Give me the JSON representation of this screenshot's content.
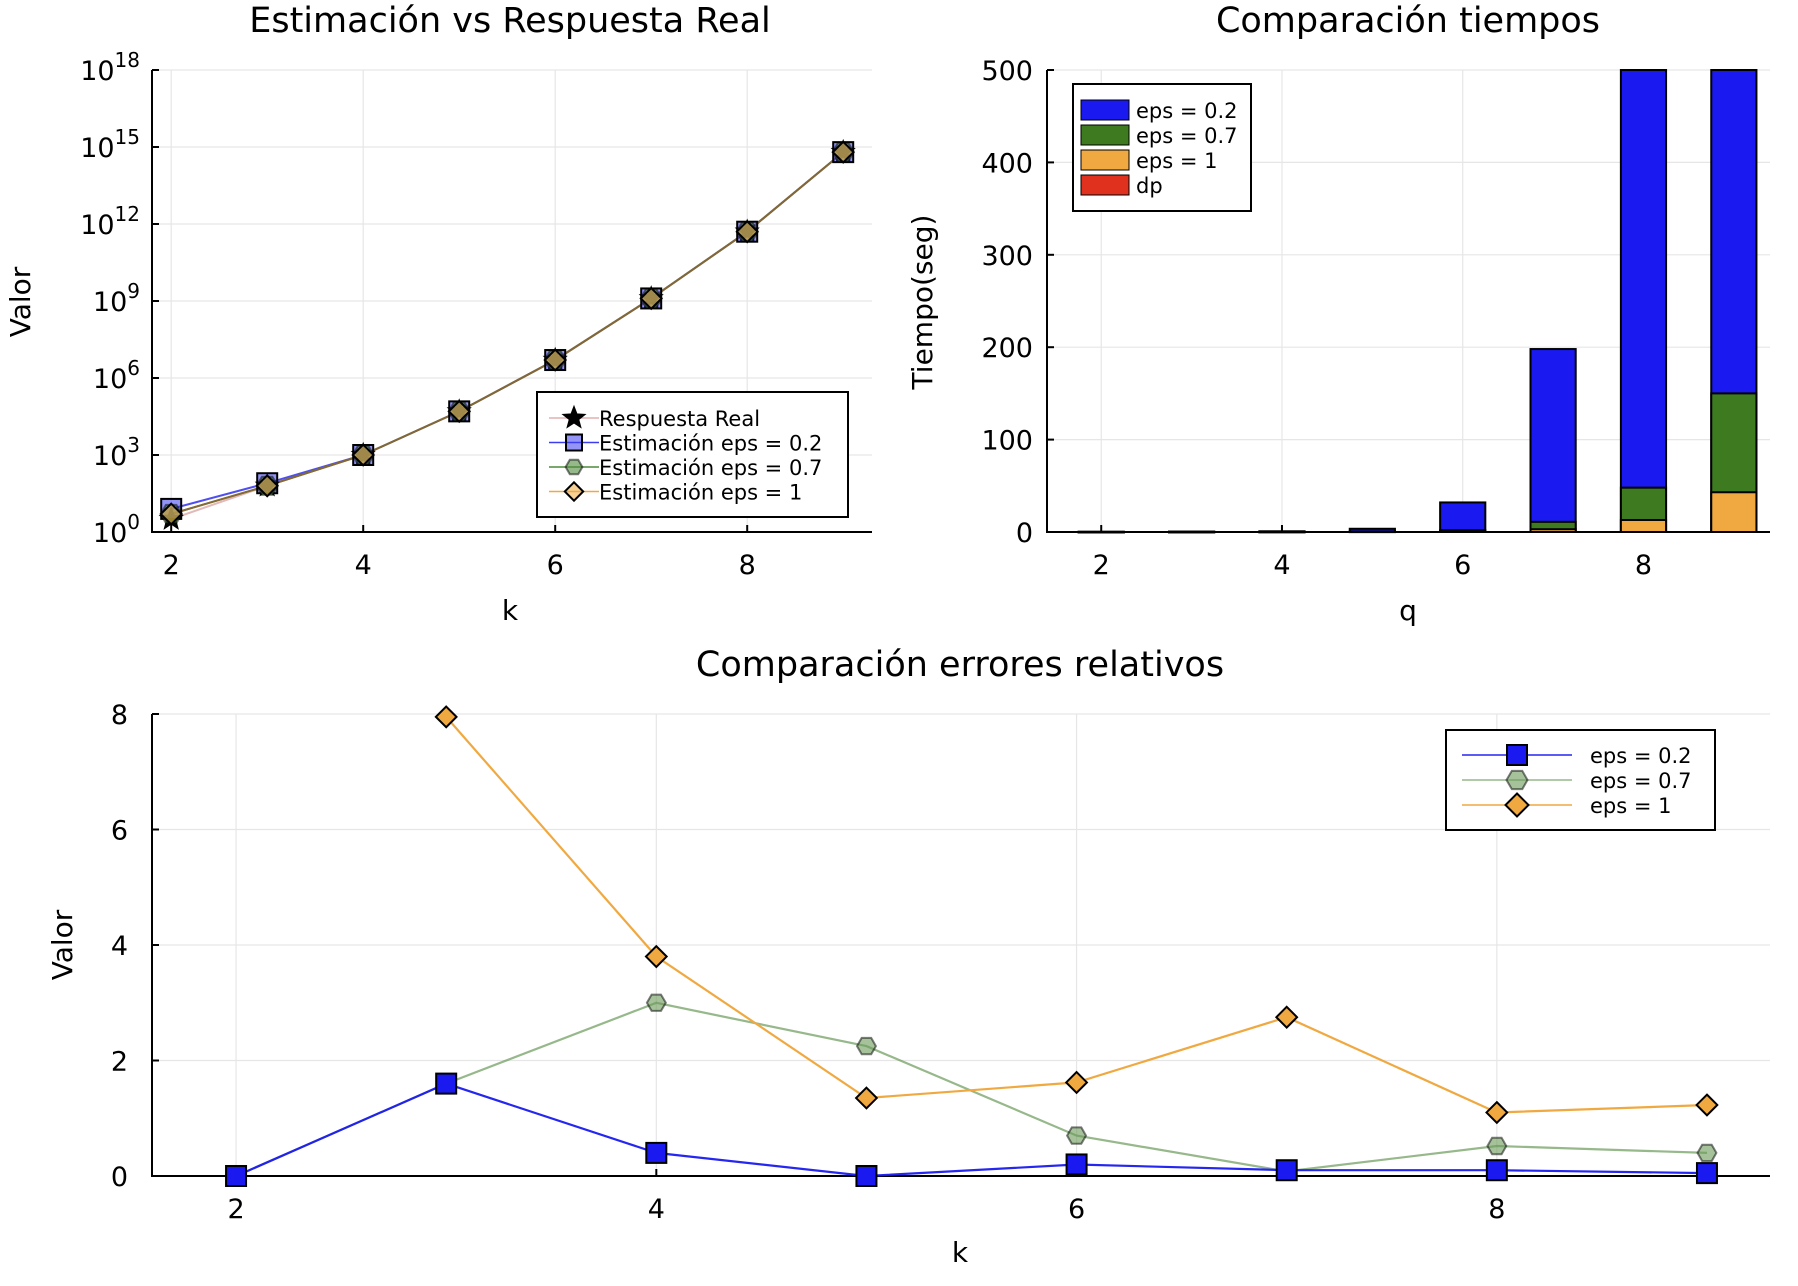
{
  "chart_data": [
    {
      "type": "line",
      "title": "Estimación vs Respuesta Real",
      "xlabel": "k",
      "ylabel": "Valor",
      "yscale": "log10",
      "xlim": [
        1.8,
        9.3
      ],
      "ylim": [
        1,
        1e+18
      ],
      "xticks": [
        2,
        4,
        6,
        8
      ],
      "xtick_labels": [
        "2",
        "4",
        "6",
        "8"
      ],
      "yticks": [
        {
          "exp": 0,
          "base": "10",
          "sup": "0"
        },
        {
          "exp": 3,
          "base": "10",
          "sup": "3"
        },
        {
          "exp": 6,
          "base": "10",
          "sup": "6"
        },
        {
          "exp": 9,
          "base": "10",
          "sup": "9"
        },
        {
          "exp": 12,
          "base": "10",
          "sup": "12"
        },
        {
          "exp": 15,
          "base": "10",
          "sup": "15"
        },
        {
          "exp": 18,
          "base": "10",
          "sup": "18"
        }
      ],
      "grid": true,
      "legend_position": "bottom-right",
      "x": [
        2,
        3,
        4,
        5,
        6,
        7,
        8,
        9
      ],
      "series": [
        {
          "name": "Respuesta Real",
          "marker": "star",
          "color": "#e0b0b0",
          "log10_values": [
            0.5,
            1.8,
            3.0,
            4.7,
            6.7,
            9.1,
            11.7,
            14.8
          ]
        },
        {
          "name": "Estimación eps = 0.2",
          "marker": "square",
          "color": "#3c3cf0",
          "log10_values": [
            0.9,
            1.9,
            3.0,
            4.7,
            6.7,
            9.1,
            11.7,
            14.8
          ]
        },
        {
          "name": "Estimación eps = 0.7",
          "marker": "hexagon",
          "color": "#4e8a3a",
          "log10_values": [
            0.7,
            1.8,
            3.0,
            4.7,
            6.7,
            9.1,
            11.7,
            14.8
          ]
        },
        {
          "name": "Estimación eps = 1",
          "marker": "diamond",
          "color": "#f0a940",
          "log10_values": [
            0.7,
            1.8,
            3.0,
            4.7,
            6.7,
            9.1,
            11.7,
            14.8
          ]
        }
      ]
    },
    {
      "type": "bar",
      "title": "Comparación tiempos",
      "xlabel": "q",
      "ylabel": "Tiempo(seg)",
      "xlim": [
        1.4,
        9.4
      ],
      "ylim": [
        0,
        500
      ],
      "xticks": [
        2,
        4,
        6,
        8
      ],
      "yticks": [
        0,
        100,
        200,
        300,
        400,
        500
      ],
      "grid": true,
      "legend_position": "top-left",
      "categories": [
        2,
        3,
        4,
        5,
        6,
        7,
        8,
        9
      ],
      "series": [
        {
          "name": "eps = 0.2",
          "color": "#1a1af0",
          "values": [
            0.3,
            0.5,
            0.8,
            3.5,
            32,
            198,
            500,
            500
          ]
        },
        {
          "name": "eps = 0.7",
          "color": "#3e7b20",
          "values": [
            0.1,
            0.2,
            0.3,
            0.6,
            2,
            11,
            48,
            150
          ]
        },
        {
          "name": "eps = 1",
          "color": "#f0a940",
          "values": [
            0.1,
            0.1,
            0.2,
            0.4,
            1,
            3,
            13,
            43
          ]
        },
        {
          "name": "dp",
          "color": "#e0311e",
          "values": [
            0,
            0,
            0,
            0,
            0,
            0,
            0,
            0
          ]
        }
      ]
    },
    {
      "type": "line",
      "title": "Comparación errores relativos",
      "xlabel": "k",
      "ylabel": "Valor",
      "xlim": [
        1.6,
        9.3
      ],
      "ylim": [
        0,
        8
      ],
      "xticks": [
        2,
        4,
        6,
        8
      ],
      "yticks": [
        0,
        2,
        4,
        6,
        8
      ],
      "grid": true,
      "legend_position": "top-right",
      "x": [
        2,
        3,
        4,
        5,
        6,
        7,
        8,
        9
      ],
      "series": [
        {
          "name": "eps = 0.2",
          "marker": "square",
          "color": "#1a1af0",
          "values": [
            0.0,
            1.6,
            0.4,
            0.0,
            0.2,
            0.1,
            0.1,
            0.05
          ]
        },
        {
          "name": "eps = 0.7",
          "marker": "hexagon",
          "color": "#6a9a58",
          "values": [
            0.0,
            1.6,
            3.0,
            2.25,
            0.7,
            0.08,
            0.52,
            0.4
          ]
        },
        {
          "name": "eps = 1",
          "marker": "diamond",
          "color": "#f0a940",
          "values": [
            null,
            7.95,
            3.8,
            1.35,
            1.62,
            2.75,
            1.1,
            1.23
          ]
        }
      ]
    }
  ]
}
